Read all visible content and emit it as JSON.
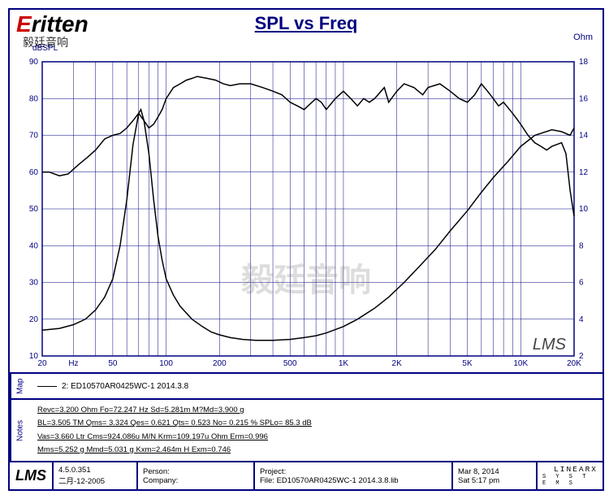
{
  "brand": {
    "name_red": "E",
    "name_rest": "ritten",
    "sub": "毅廷音响"
  },
  "title": "SPL vs Freq",
  "axis": {
    "left_label": "dBSPL",
    "right_label": "Ohm",
    "x_unit": "Hz",
    "x_ticks_labels": [
      "20",
      "Hz",
      "50",
      "",
      "100",
      "200",
      "",
      "500",
      "",
      "1K",
      "2K",
      "",
      "5K",
      "",
      "10K",
      "20K"
    ],
    "x_ticks": [
      20,
      30,
      50,
      70,
      100,
      200,
      300,
      500,
      700,
      1000,
      2000,
      3000,
      5000,
      7000,
      10000,
      20000
    ],
    "y_left": {
      "min": 10,
      "max": 90,
      "step": 10
    },
    "y_right": {
      "min": 2,
      "max": 18,
      "step": 2
    },
    "grid_color": "#000080",
    "background": "#ffffff",
    "line_color": "#000000",
    "line_width": 1.5
  },
  "watermark": "毅廷音响",
  "watermark_lms": "LMS",
  "legend": {
    "series2": "2: ED10570AR0425WC-1   2014.3.8"
  },
  "notes": {
    "l1": "Revc=3.200 Ohm  Fo=72.247 Hz  Sd=5.281m M?Md=3.900 g",
    "l2": "BL=3.505 TM  Qms= 3.324  Qes= 0.621  Qts= 0.523  No= 0.215 %  SPLo= 85.3 dB",
    "l3": "Vas=3.660 Ltr  Cms=924.086u M/N  Krm=109.197u Ohm  Erm=0.996",
    "l4": "Mms=5.252 g  Mmd=5.031 g  Kxm=2.464m H  Exm=0.746"
  },
  "footer": {
    "lms": "LMS",
    "version": "4.5.0.351",
    "version_date": "二月-12-2005",
    "person": "Person:",
    "company": "Company:",
    "project": "Project:",
    "file": "File: ED10570AR0425WC-1  2014.3.8.lib",
    "date": "Mar  8, 2014",
    "time": "Sat  5:17 pm",
    "linearx": "LINEARX",
    "systems": "S Y S T E M S"
  },
  "series": {
    "spl": [
      [
        20,
        60
      ],
      [
        22,
        60
      ],
      [
        25,
        59
      ],
      [
        28,
        59.5
      ],
      [
        32,
        62
      ],
      [
        36,
        64
      ],
      [
        40,
        66
      ],
      [
        45,
        69
      ],
      [
        50,
        70
      ],
      [
        55,
        70.5
      ],
      [
        60,
        72
      ],
      [
        65,
        74
      ],
      [
        70,
        76
      ],
      [
        75,
        74
      ],
      [
        80,
        72
      ],
      [
        85,
        73
      ],
      [
        90,
        75
      ],
      [
        95,
        77
      ],
      [
        100,
        80
      ],
      [
        110,
        83
      ],
      [
        120,
        84
      ],
      [
        130,
        85
      ],
      [
        140,
        85.5
      ],
      [
        150,
        86
      ],
      [
        170,
        85.5
      ],
      [
        190,
        85
      ],
      [
        210,
        84
      ],
      [
        230,
        83.5
      ],
      [
        260,
        84
      ],
      [
        300,
        84
      ],
      [
        350,
        83
      ],
      [
        400,
        82
      ],
      [
        450,
        81
      ],
      [
        500,
        79
      ],
      [
        550,
        78
      ],
      [
        600,
        77
      ],
      [
        700,
        80
      ],
      [
        750,
        79
      ],
      [
        800,
        77
      ],
      [
        900,
        80
      ],
      [
        1000,
        82
      ],
      [
        1100,
        80
      ],
      [
        1200,
        78
      ],
      [
        1300,
        80
      ],
      [
        1400,
        79
      ],
      [
        1500,
        80
      ],
      [
        1700,
        83
      ],
      [
        1800,
        79
      ],
      [
        2000,
        82
      ],
      [
        2200,
        84
      ],
      [
        2500,
        83
      ],
      [
        2800,
        81
      ],
      [
        3000,
        83
      ],
      [
        3500,
        84
      ],
      [
        4000,
        82
      ],
      [
        4500,
        80
      ],
      [
        5000,
        79
      ],
      [
        5500,
        81
      ],
      [
        6000,
        84
      ],
      [
        6500,
        82
      ],
      [
        7000,
        80
      ],
      [
        7500,
        78
      ],
      [
        8000,
        79
      ],
      [
        9000,
        76
      ],
      [
        10000,
        73
      ],
      [
        11000,
        70
      ],
      [
        12000,
        68
      ],
      [
        13000,
        67
      ],
      [
        14000,
        66
      ],
      [
        15000,
        67
      ],
      [
        17000,
        68
      ],
      [
        18000,
        65
      ],
      [
        19000,
        55
      ],
      [
        20000,
        48
      ]
    ],
    "impedance": [
      [
        20,
        3.4
      ],
      [
        25,
        3.5
      ],
      [
        30,
        3.7
      ],
      [
        35,
        4.0
      ],
      [
        40,
        4.5
      ],
      [
        45,
        5.2
      ],
      [
        50,
        6.2
      ],
      [
        55,
        8.0
      ],
      [
        60,
        10.5
      ],
      [
        65,
        13.5
      ],
      [
        70,
        15.2
      ],
      [
        72,
        15.4
      ],
      [
        75,
        14.8
      ],
      [
        80,
        13.0
      ],
      [
        85,
        10.5
      ],
      [
        90,
        8.5
      ],
      [
        95,
        7.2
      ],
      [
        100,
        6.2
      ],
      [
        110,
        5.3
      ],
      [
        120,
        4.7
      ],
      [
        140,
        4.0
      ],
      [
        160,
        3.6
      ],
      [
        180,
        3.3
      ],
      [
        200,
        3.15
      ],
      [
        230,
        3.0
      ],
      [
        270,
        2.9
      ],
      [
        320,
        2.85
      ],
      [
        400,
        2.85
      ],
      [
        500,
        2.9
      ],
      [
        600,
        3.0
      ],
      [
        700,
        3.1
      ],
      [
        800,
        3.25
      ],
      [
        1000,
        3.6
      ],
      [
        1200,
        4.0
      ],
      [
        1500,
        4.6
      ],
      [
        1800,
        5.2
      ],
      [
        2200,
        6.0
      ],
      [
        2700,
        6.9
      ],
      [
        3300,
        7.8
      ],
      [
        4000,
        8.8
      ],
      [
        5000,
        9.9
      ],
      [
        6000,
        10.9
      ],
      [
        7000,
        11.7
      ],
      [
        8500,
        12.6
      ],
      [
        10000,
        13.4
      ],
      [
        12000,
        14.0
      ],
      [
        15000,
        14.3
      ],
      [
        17000,
        14.2
      ],
      [
        19000,
        14.0
      ],
      [
        20000,
        14.4
      ]
    ]
  }
}
